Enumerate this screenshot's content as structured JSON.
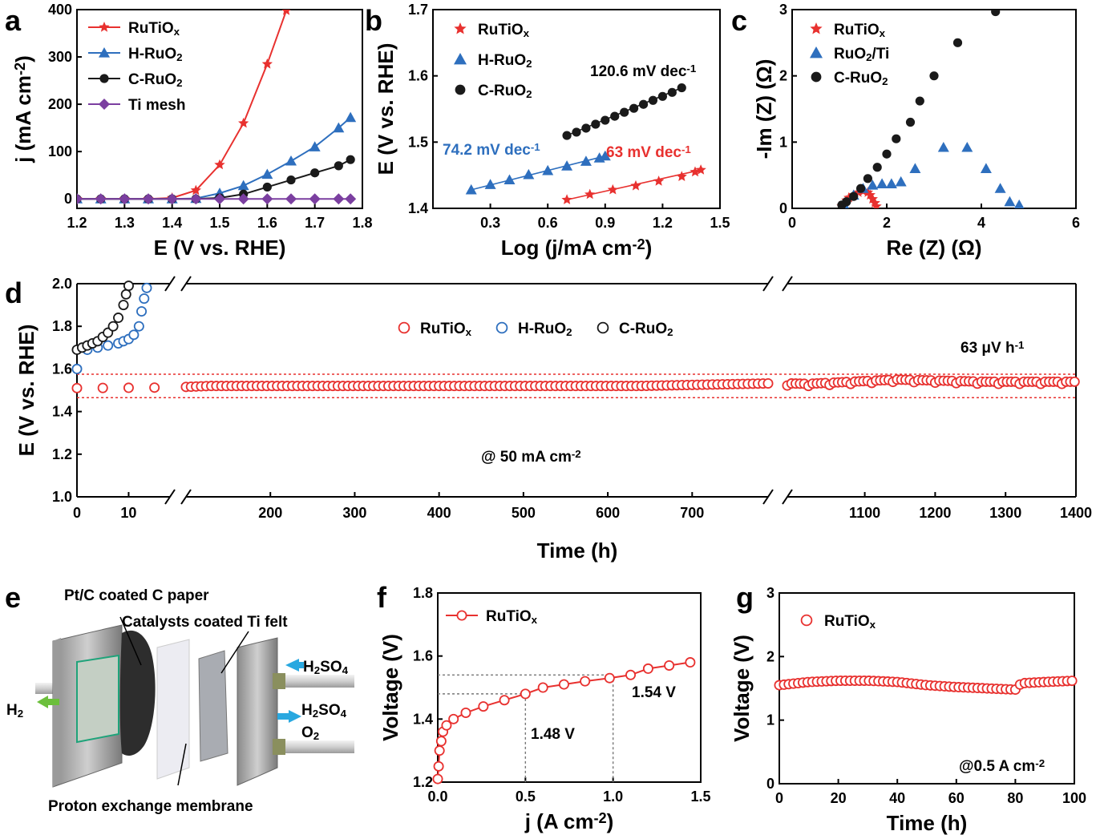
{
  "panel_labels": {
    "a": "a",
    "b": "b",
    "c": "c",
    "d": "d",
    "e": "e",
    "f": "f",
    "g": "g"
  },
  "chart_data": [
    {
      "panel": "a",
      "type": "line",
      "xlabel": "E (V vs. RHE)",
      "ylabel": "j (mA cm<sup>-2</sup>)",
      "xlim": [
        1.2,
        1.8
      ],
      "ylim": [
        -20,
        400
      ],
      "xticks": [
        1.2,
        1.3,
        1.4,
        1.5,
        1.6,
        1.7,
        1.8
      ],
      "yticks": [
        0,
        100,
        200,
        300,
        400
      ],
      "legend_position": "top-left",
      "series": [
        {
          "name": "RuTiO<sub>x</sub>",
          "color": "#e8312f",
          "marker": "star",
          "x": [
            1.2,
            1.25,
            1.3,
            1.35,
            1.4,
            1.45,
            1.5,
            1.55,
            1.6,
            1.64
          ],
          "y": [
            0,
            0,
            0,
            0,
            2,
            18,
            72,
            160,
            285,
            398
          ]
        },
        {
          "name": "H-RuO<sub>2</sub>",
          "color": "#2e6fbe",
          "marker": "triangle",
          "x": [
            1.2,
            1.25,
            1.3,
            1.35,
            1.4,
            1.45,
            1.5,
            1.55,
            1.6,
            1.65,
            1.7,
            1.75,
            1.775
          ],
          "y": [
            0,
            0,
            0,
            0,
            0,
            1,
            12,
            28,
            52,
            80,
            110,
            150,
            172
          ]
        },
        {
          "name": "C-RuO<sub>2</sub>",
          "color": "#1a1a1a",
          "marker": "circle",
          "x": [
            1.2,
            1.25,
            1.3,
            1.35,
            1.4,
            1.45,
            1.5,
            1.55,
            1.6,
            1.65,
            1.7,
            1.75,
            1.775
          ],
          "y": [
            0,
            0,
            0,
            0,
            0,
            0,
            2,
            10,
            25,
            40,
            55,
            70,
            83
          ]
        },
        {
          "name": "Ti mesh",
          "color": "#7b3fa0",
          "marker": "diamond",
          "x": [
            1.2,
            1.25,
            1.3,
            1.35,
            1.4,
            1.45,
            1.5,
            1.55,
            1.6,
            1.65,
            1.7,
            1.75,
            1.775
          ],
          "y": [
            0,
            0,
            0,
            0,
            0,
            0,
            0,
            0,
            0,
            0,
            0,
            0,
            0
          ]
        }
      ]
    },
    {
      "panel": "b",
      "type": "scatter",
      "xlabel": "Log (j/mA cm<sup>-2</sup>)",
      "ylabel": "E (V vs. RHE)",
      "xlim": [
        0.0,
        1.5
      ],
      "ylim": [
        1.4,
        1.7
      ],
      "xticks": [
        0.3,
        0.6,
        0.9,
        1.2,
        1.5
      ],
      "yticks": [
        1.4,
        1.5,
        1.6,
        1.7
      ],
      "legend_position": "top-left",
      "annotations": [
        "74.2 mV dec<sup>-1</sup>",
        "63 mV dec<sup>-1</sup>",
        "120.6 mV dec<sup>-1</sup>"
      ],
      "series": [
        {
          "name": "RuTiO<sub>x</sub>",
          "color": "#e8312f",
          "marker": "star",
          "x": [
            0.7,
            0.82,
            0.94,
            1.06,
            1.18,
            1.3,
            1.37,
            1.4
          ],
          "y": [
            1.413,
            1.421,
            1.428,
            1.434,
            1.441,
            1.448,
            1.455,
            1.458
          ]
        },
        {
          "name": "H-RuO<sub>2</sub>",
          "color": "#2e6fbe",
          "marker": "triangle",
          "x": [
            0.2,
            0.3,
            0.4,
            0.5,
            0.6,
            0.7,
            0.8,
            0.87,
            0.9
          ],
          "y": [
            1.428,
            1.436,
            1.443,
            1.451,
            1.457,
            1.464,
            1.471,
            1.476,
            1.479
          ]
        },
        {
          "name": "C-RuO<sub>2</sub>",
          "color": "#1a1a1a",
          "marker": "circle",
          "x": [
            0.7,
            0.75,
            0.8,
            0.85,
            0.9,
            0.95,
            1.0,
            1.05,
            1.1,
            1.15,
            1.2,
            1.25,
            1.3
          ],
          "y": [
            1.51,
            1.515,
            1.521,
            1.527,
            1.533,
            1.539,
            1.545,
            1.551,
            1.557,
            1.563,
            1.569,
            1.575,
            1.582
          ]
        }
      ]
    },
    {
      "panel": "c",
      "type": "scatter",
      "xlabel": "Re (Z) (Ω)",
      "ylabel": "-Im (Z) (Ω)",
      "xlim": [
        0,
        6
      ],
      "ylim": [
        0,
        3
      ],
      "xticks": [
        0,
        2,
        4,
        6
      ],
      "yticks": [
        0,
        1,
        2,
        3
      ],
      "legend_position": "top-left",
      "series": [
        {
          "name": "RuTiO<sub>x</sub>",
          "color": "#e8312f",
          "marker": "star",
          "x": [
            1.05,
            1.1,
            1.15,
            1.2,
            1.3,
            1.4,
            1.5,
            1.6,
            1.65,
            1.7,
            1.75,
            1.78
          ],
          "y": [
            0.03,
            0.08,
            0.12,
            0.16,
            0.2,
            0.24,
            0.26,
            0.24,
            0.2,
            0.14,
            0.08,
            0.03
          ]
        },
        {
          "name": "RuO<sub>2</sub>/Ti",
          "color": "#2e6fbe",
          "marker": "triangle",
          "x": [
            1.1,
            1.3,
            1.5,
            1.7,
            1.9,
            2.1,
            2.3,
            2.6,
            3.2,
            3.7,
            4.1,
            4.4,
            4.6,
            4.8
          ],
          "y": [
            0.05,
            0.2,
            0.3,
            0.35,
            0.37,
            0.37,
            0.4,
            0.6,
            0.92,
            0.92,
            0.6,
            0.3,
            0.1,
            0.05
          ]
        },
        {
          "name": "C-RuO<sub>2</sub>",
          "color": "#1a1a1a",
          "marker": "circle",
          "x": [
            1.05,
            1.15,
            1.3,
            1.45,
            1.6,
            1.8,
            2.0,
            2.2,
            2.5,
            2.7,
            3.0,
            3.5,
            4.3
          ],
          "y": [
            0.05,
            0.1,
            0.18,
            0.3,
            0.45,
            0.62,
            0.82,
            1.05,
            1.3,
            1.62,
            2.0,
            2.5,
            2.97
          ]
        }
      ]
    },
    {
      "panel": "d",
      "type": "scatter",
      "xlabel": "Time (h)",
      "ylabel": "E (V vs. RHE)",
      "ylim": [
        1.0,
        2.0
      ],
      "yticks": [
        1.0,
        1.2,
        1.4,
        1.6,
        1.8,
        2.0
      ],
      "xticks": [
        0,
        10,
        200,
        300,
        400,
        500,
        600,
        700,
        1100,
        1200,
        1300,
        1400
      ],
      "broken_x_axis": true,
      "legend_position": "top-center",
      "annotations": [
        "63 μV h<sup>-1</sup>",
        "@ 50 mA cm<sup>-2</sup>"
      ],
      "series": [
        {
          "name": "RuTiO<sub>x</sub>",
          "color": "#e8312f",
          "marker": "open-circle",
          "x_start": 0,
          "x_end": 1400,
          "y": [
            1.5,
            1.52,
            1.52,
            1.52,
            1.52,
            1.52,
            1.53,
            1.54,
            1.53,
            1.55,
            1.54,
            1.54
          ]
        },
        {
          "name": "H-RuO<sub>2</sub>",
          "color": "#2e6fbe",
          "marker": "open-circle",
          "x": [
            0,
            2,
            4,
            6,
            8,
            9,
            10,
            11,
            12,
            12.5,
            13,
            13.5
          ],
          "y": [
            1.6,
            1.69,
            1.7,
            1.71,
            1.72,
            1.73,
            1.74,
            1.76,
            1.8,
            1.87,
            1.93,
            1.98
          ]
        },
        {
          "name": "C-RuO<sub>2</sub>",
          "color": "#1a1a1a",
          "marker": "open-circle",
          "x": [
            0,
            1,
            2,
            3,
            4,
            5,
            6,
            7,
            8,
            9,
            9.5,
            10
          ],
          "y": [
            1.69,
            1.7,
            1.71,
            1.72,
            1.73,
            1.75,
            1.77,
            1.8,
            1.84,
            1.9,
            1.95,
            1.99
          ]
        }
      ]
    },
    {
      "panel": "f",
      "type": "line",
      "xlabel": "j (A cm<sup>-2</sup>)",
      "ylabel": "Voltage (V)",
      "xlim": [
        0.0,
        1.5
      ],
      "ylim": [
        1.2,
        1.8
      ],
      "xticks": [
        0.0,
        0.5,
        1.0,
        1.5
      ],
      "yticks": [
        1.2,
        1.4,
        1.6,
        1.8
      ],
      "legend_position": "top-left",
      "annotations": [
        "1.54 V",
        "1.48 V"
      ],
      "series": [
        {
          "name": "RuTiO<sub>x</sub>",
          "color": "#e8312f",
          "marker": "open-circle",
          "x": [
            0.0,
            0.005,
            0.01,
            0.02,
            0.03,
            0.05,
            0.09,
            0.16,
            0.26,
            0.38,
            0.5,
            0.6,
            0.72,
            0.84,
            0.98,
            1.1,
            1.2,
            1.32,
            1.44
          ],
          "y": [
            1.21,
            1.25,
            1.3,
            1.33,
            1.36,
            1.38,
            1.4,
            1.42,
            1.44,
            1.46,
            1.48,
            1.5,
            1.51,
            1.52,
            1.53,
            1.54,
            1.56,
            1.57,
            1.58
          ]
        }
      ]
    },
    {
      "panel": "g",
      "type": "scatter",
      "xlabel": "Time (h)",
      "ylabel": "Voltage (V)",
      "xlim": [
        0,
        100
      ],
      "ylim": [
        0,
        3
      ],
      "xticks": [
        0,
        20,
        40,
        60,
        80,
        100
      ],
      "yticks": [
        0,
        1,
        2,
        3
      ],
      "legend_position": "top-left",
      "annotations": [
        "@0.5 A cm<sup>-2</sup>"
      ],
      "series": [
        {
          "name": "RuTiO<sub>x</sub>",
          "color": "#e8312f",
          "marker": "open-circle",
          "x": [
            0,
            10,
            20,
            30,
            40,
            50,
            60,
            70,
            80,
            82,
            90,
            100
          ],
          "y": [
            1.55,
            1.6,
            1.62,
            1.62,
            1.6,
            1.55,
            1.52,
            1.5,
            1.48,
            1.58,
            1.6,
            1.62
          ]
        }
      ]
    }
  ],
  "panel_e": {
    "labels": {
      "ptc": "Pt/C coated C paper",
      "catalysts": "Catalysts coated Ti felt",
      "h2so4_in": "H<sub>2</sub>SO<sub>4</sub>",
      "h2so4_out": "H<sub>2</sub>SO<sub>4</sub>",
      "o2": "O<sub>2</sub>",
      "h2": "H<sub>2</sub>",
      "pem": "Proton exchange membrane"
    },
    "colors": {
      "arrow_blue": "#29a8e0",
      "arrow_green": "#6cbf3c"
    }
  }
}
